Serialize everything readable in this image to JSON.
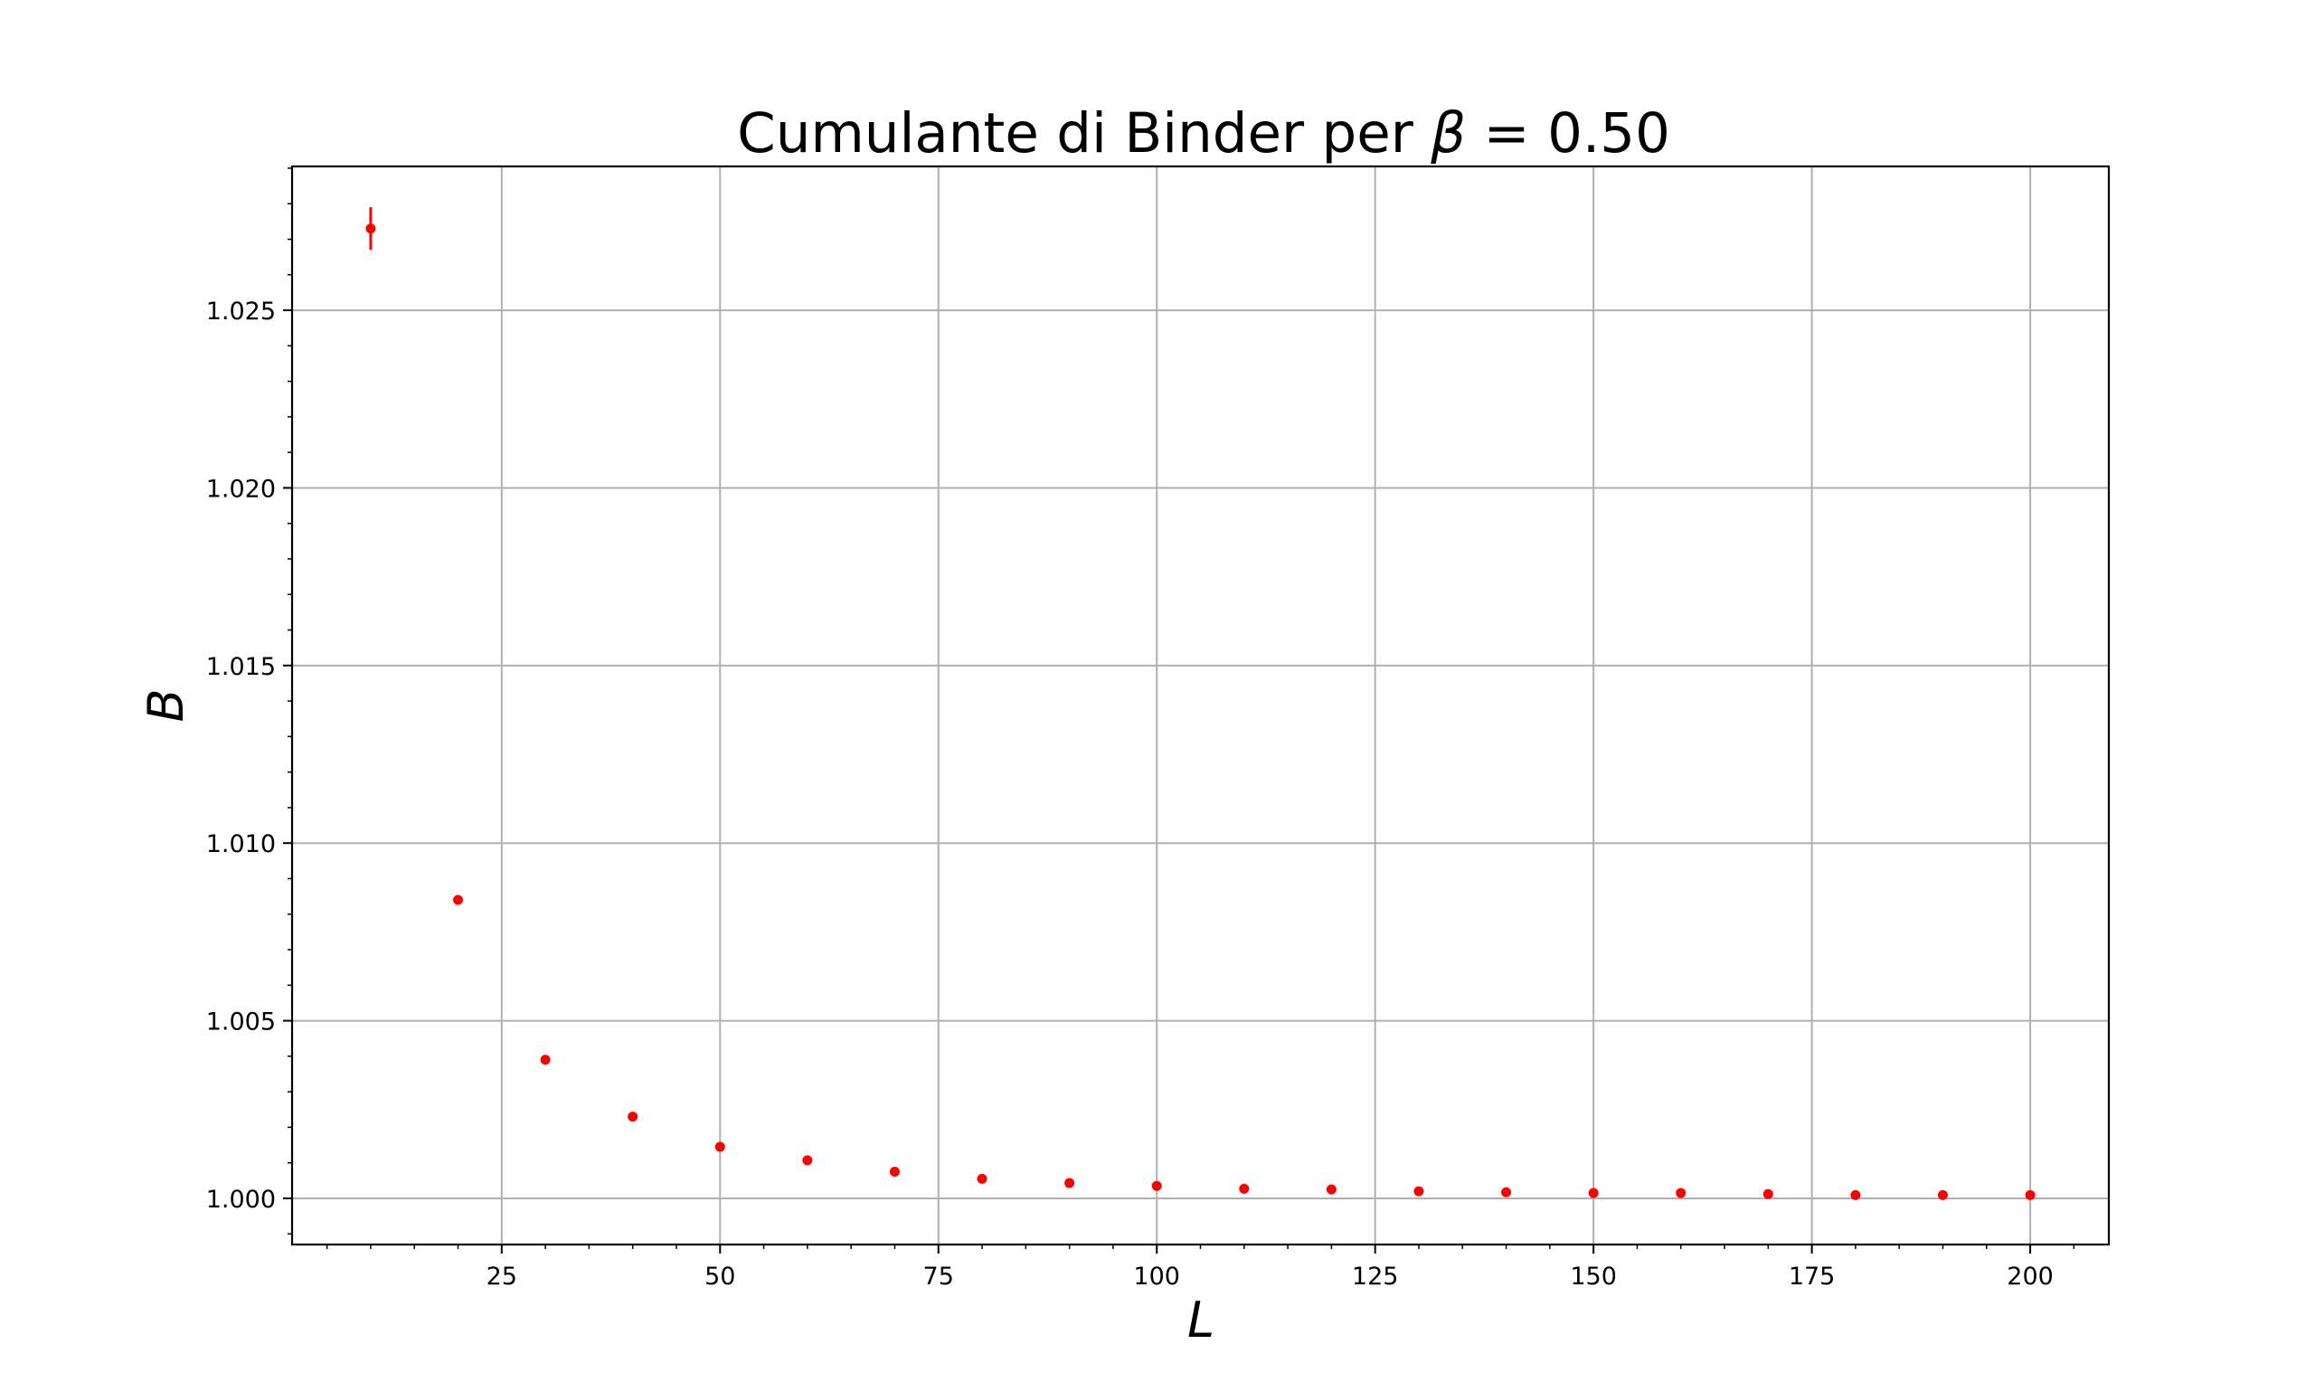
{
  "chart_data": {
    "type": "scatter",
    "title_text": "Cumulante di Binder per ",
    "title_symbol": "β",
    "title_value": " = 0.50",
    "xlabel": "L",
    "ylabel": "B",
    "xlim": [
      1,
      209
    ],
    "ylim": [
      0.9987,
      1.02905
    ],
    "x_ticks": [
      25,
      50,
      75,
      100,
      125,
      150,
      175,
      200
    ],
    "x_tick_labels": [
      "25",
      "50",
      "75",
      "100",
      "125",
      "150",
      "175",
      "200"
    ],
    "y_ticks": [
      1.0,
      1.005,
      1.01,
      1.015,
      1.02,
      1.025
    ],
    "y_tick_labels": [
      "1.000",
      "1.005",
      "1.010",
      "1.015",
      "1.020",
      "1.025"
    ],
    "grid": true,
    "marker_color": "#ff0000",
    "series": [
      {
        "x": [
          10,
          20,
          30,
          40,
          50,
          60,
          70,
          80,
          90,
          100,
          110,
          120,
          130,
          140,
          150,
          160,
          170,
          180,
          190,
          200
        ],
        "y": [
          1.0273,
          1.0084,
          1.0039,
          1.0023,
          1.00145,
          1.00107,
          1.00075,
          1.00055,
          1.00043,
          1.00035,
          1.00027,
          1.00025,
          1.0002,
          1.00017,
          1.00015,
          1.00015,
          1.00012,
          1.00009,
          1.00009,
          1.00009
        ],
        "yerr": [
          0.0006,
          5e-05,
          3e-05,
          2e-05,
          2e-05,
          1e-05,
          1e-05,
          1e-05,
          1e-05,
          1e-05,
          1e-05,
          1e-05,
          1e-05,
          1e-05,
          1e-05,
          1e-05,
          1e-05,
          1e-05,
          1e-05,
          1e-05
        ]
      }
    ]
  }
}
